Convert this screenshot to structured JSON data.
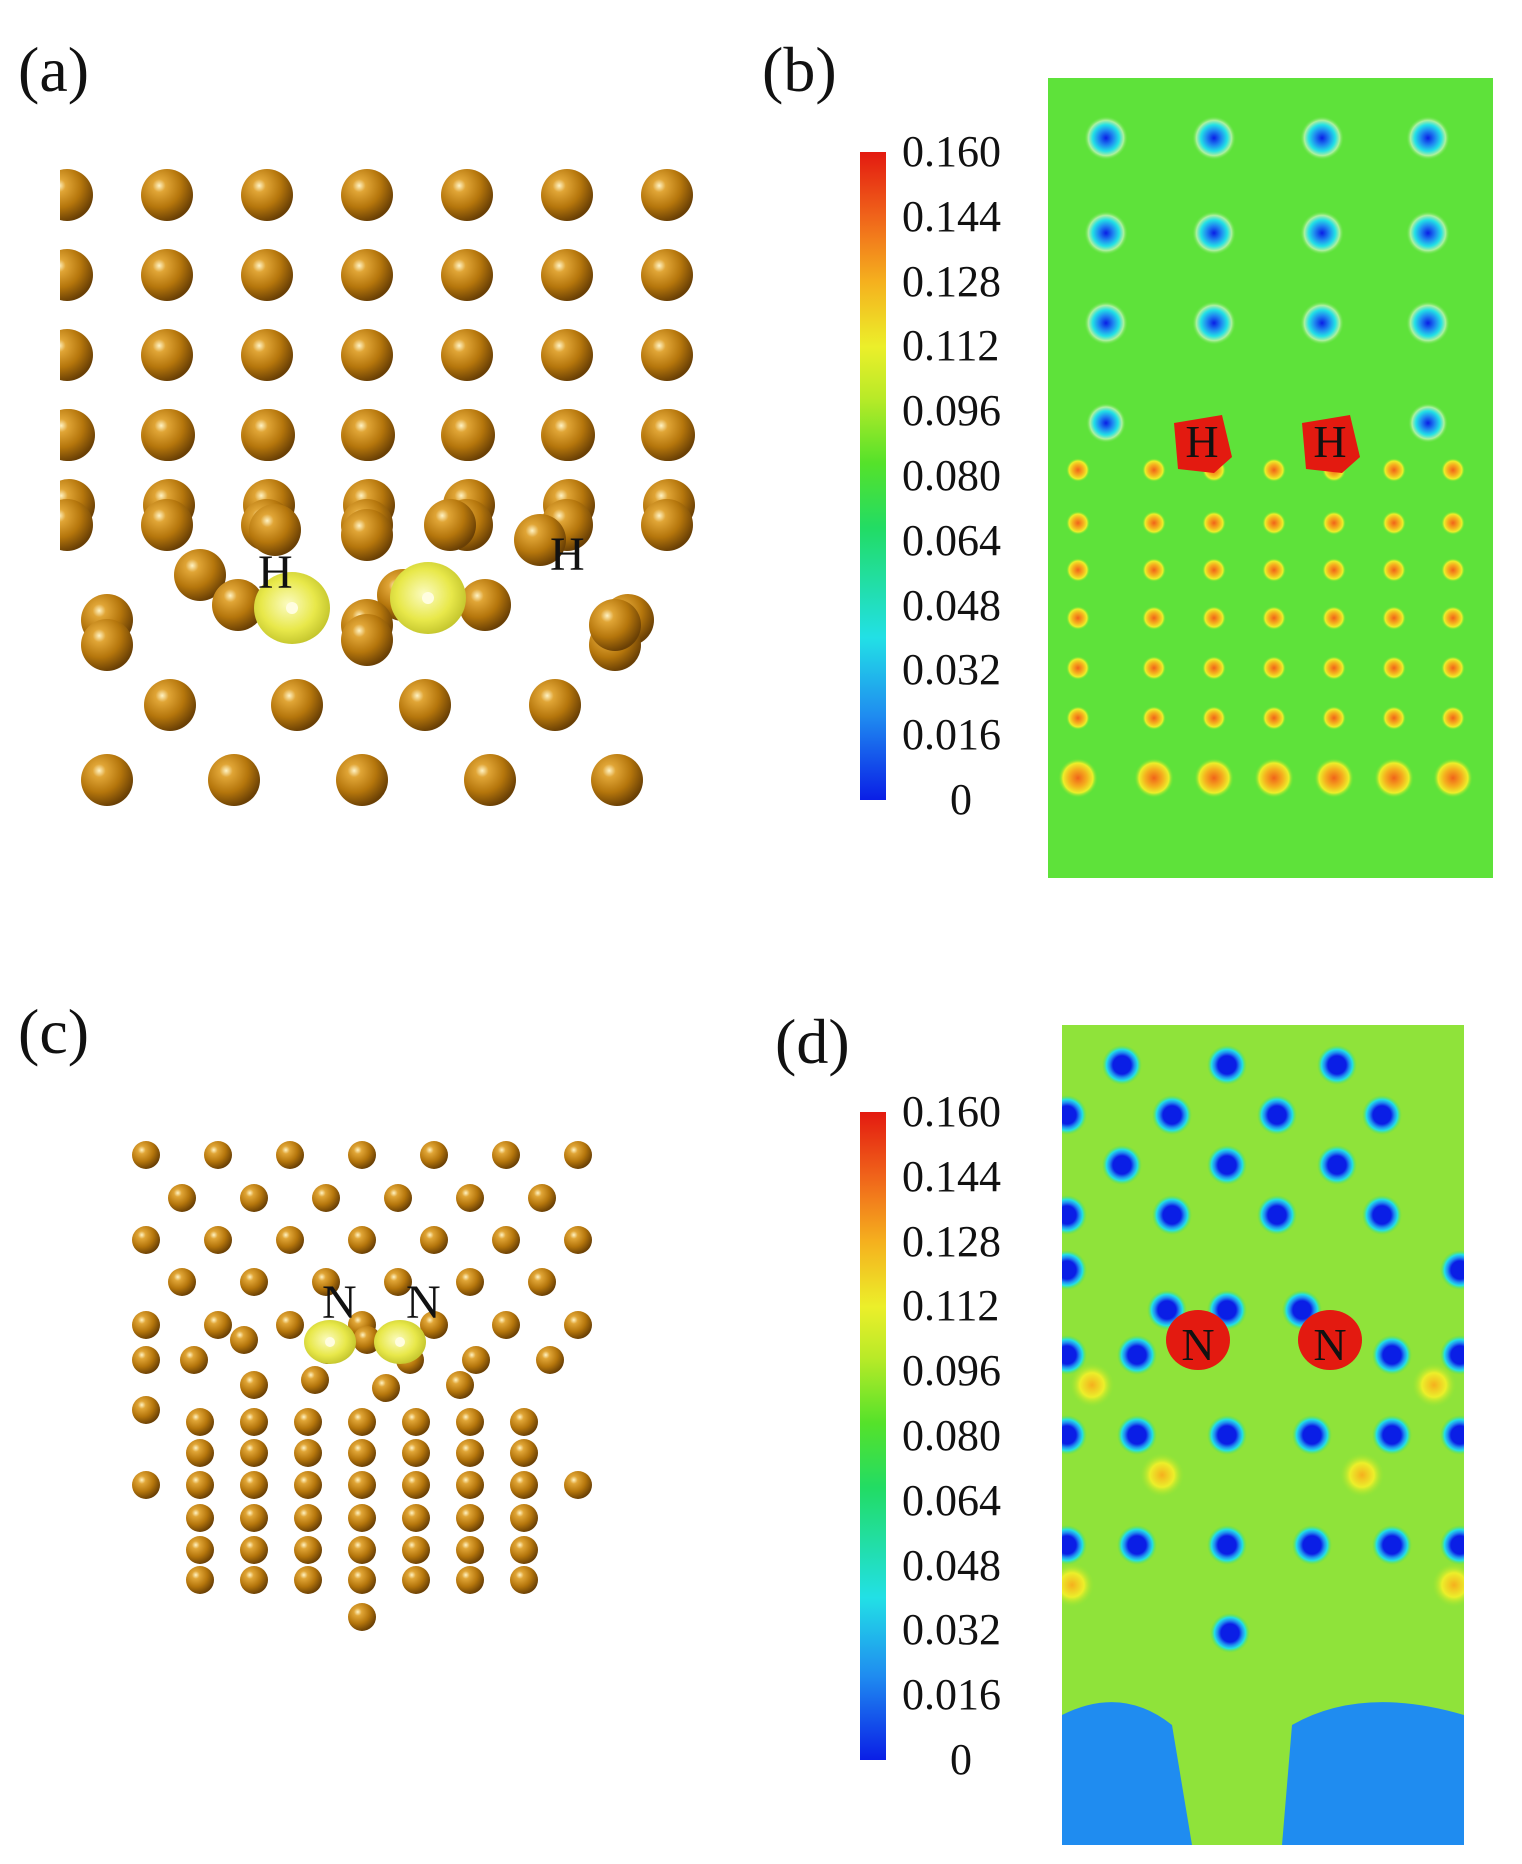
{
  "panels": {
    "a": {
      "label": "(a)",
      "atom_labels": [
        "H",
        "H"
      ]
    },
    "b": {
      "label": "(b)",
      "atom_labels": [
        "H",
        "H"
      ]
    },
    "c": {
      "label": "(c)",
      "atom_labels": [
        "N",
        "N"
      ]
    },
    "d": {
      "label": "(d)",
      "atom_labels": [
        "N",
        "N"
      ]
    }
  },
  "colorbar": {
    "ticks": [
      "0.160",
      "0.144",
      "0.128",
      "0.112",
      "0.096",
      "0.080",
      "0.064",
      "0.048",
      "0.032",
      "0.016",
      "0"
    ],
    "colors": [
      "#e31a10",
      "#f0641a",
      "#f5b01e",
      "#ecef2a",
      "#b8ea28",
      "#55e22a",
      "#22dc64",
      "#22e0e6",
      "#1f8cf0",
      "#0a1ee6"
    ]
  },
  "style": {
    "atom_color": "#b5760c",
    "isosurface_color": "#e8e84a",
    "map_background": "#5ee23a"
  }
}
